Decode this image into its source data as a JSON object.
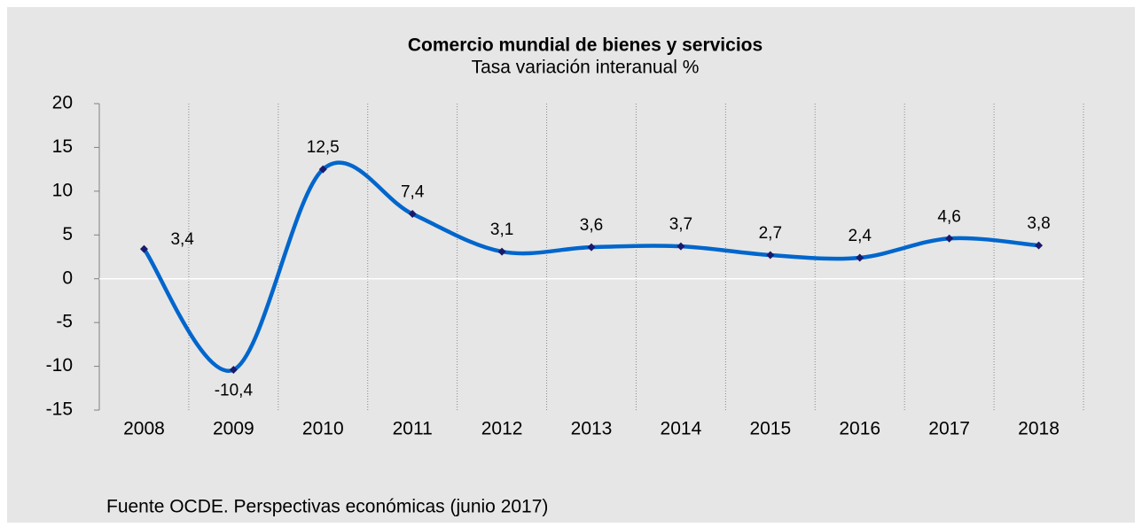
{
  "chart_data": {
    "type": "line",
    "title": "Comercio mundial de bienes y servicios",
    "subtitle": "Tasa variación interanual %",
    "source": "Fuente OCDE. Perspectivas económicas (junio 2017)",
    "categories": [
      "2008",
      "2009",
      "2010",
      "2011",
      "2012",
      "2013",
      "2014",
      "2015",
      "2016",
      "2017",
      "2018"
    ],
    "series": [
      {
        "name": "Comercio mundial",
        "color": "#0066cc",
        "marker_color": "#1a1a6b",
        "values": [
          3.4,
          -10.4,
          12.5,
          7.4,
          3.1,
          3.6,
          3.7,
          2.7,
          2.4,
          4.6,
          3.8
        ],
        "value_labels": [
          "3,4",
          "-10,4",
          "12,5",
          "7,4",
          "3,1",
          "3,6",
          "3,7",
          "2,7",
          "2,4",
          "4,6",
          "3,8"
        ]
      }
    ],
    "ylim": [
      -15,
      20
    ],
    "yticks": [
      -15,
      -10,
      -5,
      0,
      5,
      10,
      15,
      20
    ],
    "smooth": true,
    "grid": false
  }
}
